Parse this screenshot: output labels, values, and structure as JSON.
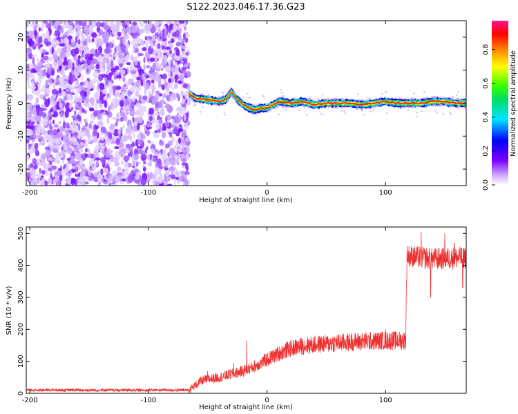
{
  "page_title": "S122.2023.046.17.36.G23",
  "chart_data": [
    {
      "type": "heatmap",
      "xlabel": "Height of straight line (km)",
      "ylabel": "Frequency (Hz)",
      "xlim": [
        -203,
        168
      ],
      "ylim": [
        -25,
        25
      ],
      "x_ticks": [
        "-200",
        "-100",
        "0",
        "100"
      ],
      "x_tick_values": [
        -200,
        -100,
        0,
        100
      ],
      "y_ticks": [
        "-20",
        "-10",
        "0",
        "10",
        "20"
      ],
      "y_tick_values": [
        -20,
        -10,
        0,
        10,
        20
      ],
      "noise_region": [
        -203,
        -66
      ],
      "signal_start": -66,
      "ridge_frequency": [
        [
          -66,
          3.0
        ],
        [
          -60,
          1.5
        ],
        [
          -50,
          1.0
        ],
        [
          -40,
          0.5
        ],
        [
          -35,
          1.0
        ],
        [
          -30,
          3.5
        ],
        [
          -25,
          1.0
        ],
        [
          -20,
          -0.5
        ],
        [
          -15,
          -1.5
        ],
        [
          -10,
          -2.0
        ],
        [
          -5,
          -1.5
        ],
        [
          0,
          -1.5
        ],
        [
          5,
          -0.5
        ],
        [
          10,
          0.5
        ],
        [
          20,
          0.0
        ],
        [
          30,
          0.5
        ],
        [
          40,
          -0.5
        ],
        [
          50,
          0.0
        ],
        [
          60,
          0.0
        ],
        [
          70,
          0.0
        ],
        [
          80,
          -0.5
        ],
        [
          90,
          0.0
        ],
        [
          100,
          0.5
        ],
        [
          110,
          0.0
        ],
        [
          120,
          0.0
        ],
        [
          130,
          0.0
        ],
        [
          140,
          0.5
        ],
        [
          150,
          0.5
        ],
        [
          160,
          0.0
        ],
        [
          168,
          0.0
        ]
      ],
      "colorbar": {
        "label": "Normalized spectral amplitude",
        "ticks": [
          "0.0",
          "0.2",
          "0.4",
          "0.6",
          "0.8"
        ],
        "tick_values": [
          0,
          0.2,
          0.4,
          0.6,
          0.8
        ],
        "range": [
          0,
          0.97
        ],
        "colors": [
          "#ffffff",
          "#c9a0ff",
          "#7a00ff",
          "#0000ff",
          "#00e5ff",
          "#00ff00",
          "#ffff00",
          "#ff6600",
          "#ff0000",
          "#ff1493"
        ]
      },
      "grid": false
    },
    {
      "type": "line",
      "xlabel": "Height of straight line (km)",
      "ylabel": "SNR (10 * v/v)",
      "xlim": [
        -203,
        168
      ],
      "ylim": [
        0,
        520
      ],
      "x_ticks": [
        "-200",
        "-100",
        "0",
        "100"
      ],
      "x_tick_values": [
        -200,
        -100,
        0,
        100
      ],
      "y_ticks": [
        "0",
        "100",
        "200",
        "300",
        "400",
        "500"
      ],
      "y_tick_values": [
        0,
        100,
        200,
        300,
        400,
        500
      ],
      "line_color": "#ee3030",
      "grid": false,
      "series_trend": [
        [
          -203,
          10
        ],
        [
          -150,
          10
        ],
        [
          -100,
          10
        ],
        [
          -66,
          10
        ],
        [
          -55,
          40
        ],
        [
          -40,
          50
        ],
        [
          -30,
          60
        ],
        [
          -20,
          70
        ],
        [
          -10,
          85
        ],
        [
          0,
          105
        ],
        [
          10,
          125
        ],
        [
          20,
          140
        ],
        [
          30,
          148
        ],
        [
          40,
          152
        ],
        [
          60,
          158
        ],
        [
          80,
          162
        ],
        [
          100,
          165
        ],
        [
          117,
          165
        ],
        [
          118,
          430
        ],
        [
          140,
          420
        ],
        [
          168,
          425
        ]
      ],
      "series_spikes": [
        [
          -17,
          165
        ],
        [
          -50,
          70
        ],
        [
          -28,
          95
        ],
        [
          100,
          200
        ],
        [
          130,
          505
        ],
        [
          150,
          500
        ],
        [
          158,
          470
        ],
        [
          138,
          300
        ],
        [
          165,
          330
        ]
      ]
    }
  ]
}
